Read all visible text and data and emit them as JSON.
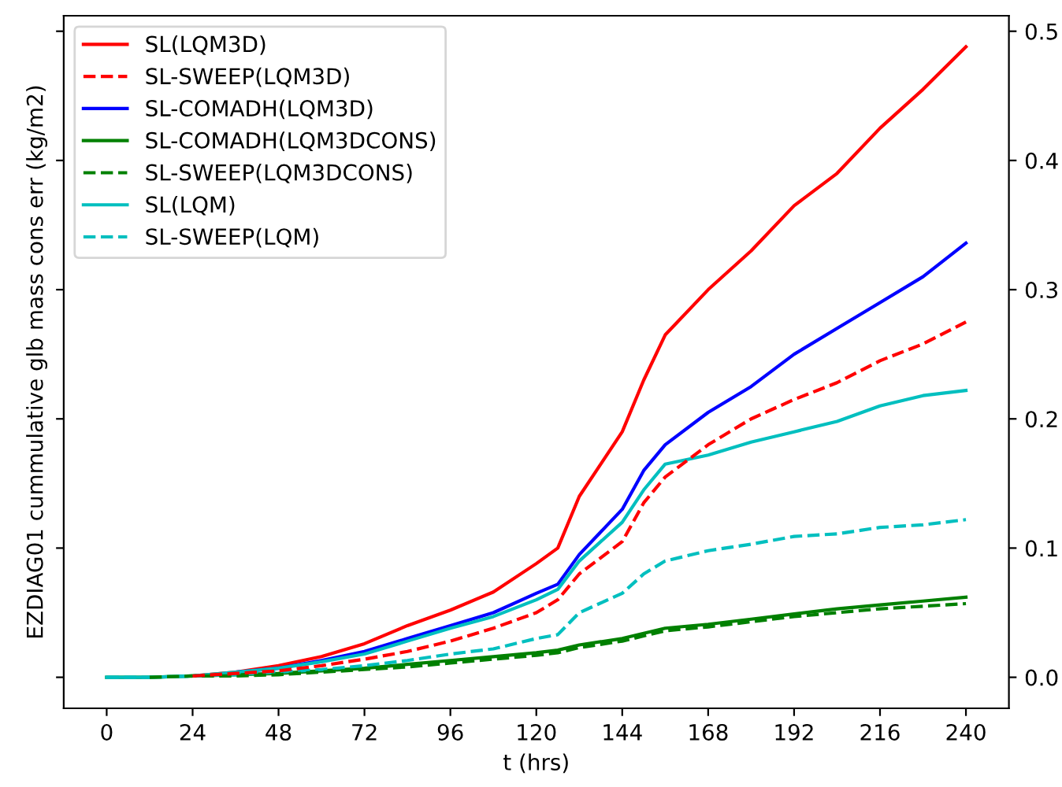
{
  "chart_data": {
    "type": "line",
    "xlabel": "t (hrs)",
    "ylabel": "EZDIAG01 cummulative glb mass cons err (kg/m2)",
    "x": [
      0,
      12,
      24,
      36,
      48,
      60,
      72,
      84,
      96,
      108,
      120,
      126,
      132,
      144,
      150,
      156,
      168,
      180,
      192,
      204,
      216,
      228,
      240
    ],
    "series": [
      {
        "name": "SL(LQM3D)",
        "color": "#ff0000",
        "line_style": "solid",
        "values": [
          null,
          null,
          0.001,
          0.004,
          0.009,
          0.016,
          0.026,
          0.04,
          0.052,
          0.066,
          0.088,
          0.1,
          0.14,
          0.19,
          0.23,
          0.265,
          0.3,
          0.33,
          0.365,
          0.39,
          0.425,
          0.455,
          0.488
        ]
      },
      {
        "name": "SL-SWEEP(LQM3D)",
        "color": "#ff0000",
        "line_style": "dashed",
        "values": [
          null,
          null,
          0.001,
          0.003,
          0.005,
          0.009,
          0.014,
          0.02,
          0.028,
          0.038,
          0.05,
          0.06,
          0.08,
          0.105,
          0.135,
          0.155,
          0.18,
          0.2,
          0.215,
          0.228,
          0.245,
          0.258,
          0.275
        ]
      },
      {
        "name": "SL-COMADH(LQM3D)",
        "color": "#0000ff",
        "line_style": "solid",
        "values": [
          null,
          null,
          null,
          0.004,
          0.007,
          0.013,
          0.02,
          0.03,
          0.04,
          0.05,
          0.065,
          0.072,
          0.095,
          0.13,
          0.16,
          0.18,
          0.205,
          0.225,
          0.25,
          0.27,
          0.29,
          0.31,
          0.336
        ]
      },
      {
        "name": "SL-COMADH(LQM3DCONS)",
        "color": "#008000",
        "line_style": "solid",
        "values": [
          0,
          0,
          0.001,
          0.002,
          0.003,
          0.005,
          0.007,
          0.01,
          0.013,
          0.016,
          0.019,
          0.021,
          0.025,
          0.03,
          0.034,
          0.038,
          0.041,
          0.045,
          0.049,
          0.053,
          0.056,
          0.059,
          0.062
        ]
      },
      {
        "name": "SL-SWEEP(LQM3DCONS)",
        "color": "#008000",
        "line_style": "dashed",
        "values": [
          null,
          0,
          0.001,
          0.001,
          0.002,
          0.004,
          0.006,
          0.008,
          0.011,
          0.014,
          0.017,
          0.019,
          0.023,
          0.028,
          0.032,
          0.036,
          0.039,
          0.043,
          0.047,
          0.05,
          0.053,
          0.055,
          0.057
        ]
      },
      {
        "name": "SL(LQM)",
        "color": "#00bfbf",
        "line_style": "solid",
        "values": [
          0,
          0,
          0.001,
          0.004,
          0.007,
          0.012,
          0.018,
          0.028,
          0.038,
          0.047,
          0.06,
          0.068,
          0.09,
          0.12,
          0.145,
          0.165,
          0.172,
          0.182,
          0.19,
          0.198,
          0.21,
          0.218,
          0.222
        ]
      },
      {
        "name": "SL-SWEEP(LQM)",
        "color": "#00bfbf",
        "line_style": "dashed",
        "values": [
          0,
          0,
          0.001,
          0.002,
          0.004,
          0.006,
          0.009,
          0.013,
          0.018,
          0.022,
          0.03,
          0.033,
          0.05,
          0.065,
          0.08,
          0.09,
          0.098,
          0.103,
          0.109,
          0.111,
          0.116,
          0.118,
          0.122
        ]
      }
    ],
    "xlim": [
      -12,
      252
    ],
    "xticks": [
      0,
      24,
      48,
      72,
      96,
      120,
      144,
      168,
      192,
      216,
      240
    ],
    "ylim": [
      -0.024,
      0.512
    ],
    "yticks": [
      {
        "value": 0,
        "label": "0.0"
      },
      {
        "value": 0.1,
        "label": "0.1"
      },
      {
        "value": 0.2,
        "label": "0.2"
      },
      {
        "value": 0.3,
        "label": "0.3"
      },
      {
        "value": 0.4,
        "label": "0.4"
      },
      {
        "value": 0.5,
        "label": "0.5"
      }
    ],
    "legend": "top left",
    "grid": false
  }
}
